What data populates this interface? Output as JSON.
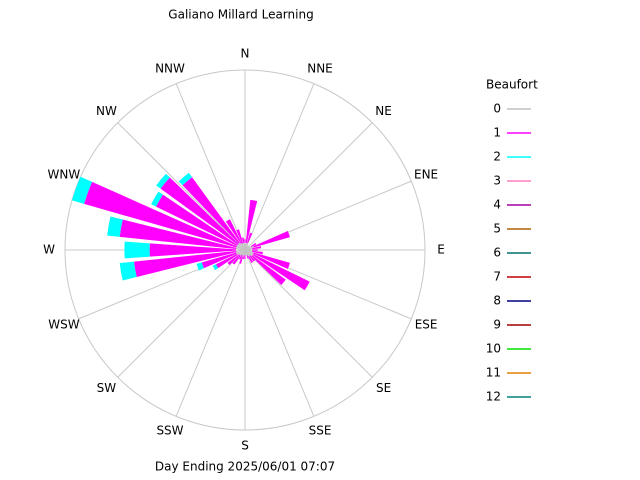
{
  "chart_data": {
    "type": "windrose",
    "title": "Galiano Millard Learning",
    "footer": "Day Ending 2025/06/01 07:07",
    "legend_title": "Beaufort",
    "direction_labels": [
      "N",
      "NNE",
      "NE",
      "ENE",
      "E",
      "ESE",
      "SE",
      "SSE",
      "S",
      "SSW",
      "SW",
      "WSW",
      "W",
      "WNW",
      "NW",
      "NNW"
    ],
    "directions": [
      0,
      10,
      20,
      30,
      40,
      50,
      60,
      70,
      80,
      90,
      100,
      110,
      120,
      130,
      140,
      150,
      160,
      170,
      180,
      190,
      200,
      210,
      220,
      230,
      240,
      250,
      260,
      270,
      280,
      290,
      300,
      310,
      320,
      330,
      340,
      350
    ],
    "rlim": [
      0,
      100
    ],
    "series": [
      {
        "name": "0",
        "color": "#c0c0c0",
        "values": [
          4,
          4,
          4,
          3,
          3,
          3,
          4,
          5,
          4,
          4,
          4,
          5,
          5,
          5,
          4,
          4,
          3,
          3,
          3,
          3,
          4,
          3,
          4,
          4,
          5,
          5,
          5,
          5,
          5,
          5,
          5,
          5,
          5,
          4,
          4,
          4
        ]
      },
      {
        "name": "1",
        "color": "#ff00ff",
        "values": [
          2,
          24,
          6,
          0,
          0,
          0,
          3,
          21,
          5,
          3,
          6,
          21,
          35,
          23,
          4,
          4,
          2,
          0,
          2,
          2,
          4,
          3,
          6,
          8,
          13,
          20,
          57,
          48,
          65,
          88,
          50,
          53,
          45,
          15,
          8,
          3
        ]
      },
      {
        "name": "2",
        "color": "#00ffff",
        "values": [
          0,
          0,
          0,
          0,
          0,
          0,
          0,
          0,
          0,
          0,
          0,
          0,
          0,
          0,
          0,
          0,
          0,
          0,
          0,
          0,
          0,
          0,
          0,
          0,
          2,
          3,
          8,
          14,
          7,
          7,
          3,
          3,
          3,
          0,
          0,
          0
        ]
      },
      {
        "name": "3",
        "color": "#ff80c0",
        "values": [
          0,
          0,
          0,
          0,
          0,
          0,
          0,
          0,
          0,
          0,
          0,
          0,
          0,
          0,
          0,
          0,
          0,
          0,
          0,
          0,
          0,
          0,
          0,
          0,
          0,
          0,
          0,
          0,
          0,
          0,
          0,
          0,
          0,
          0,
          0,
          0
        ]
      },
      {
        "name": "4",
        "color": "#a000a0",
        "values": [
          0,
          0,
          0,
          0,
          0,
          0,
          0,
          0,
          0,
          0,
          0,
          0,
          0,
          0,
          0,
          0,
          0,
          0,
          0,
          0,
          0,
          0,
          0,
          0,
          0,
          0,
          0,
          0,
          0,
          0,
          0,
          0,
          0,
          0,
          0,
          0
        ]
      },
      {
        "name": "5",
        "color": "#b06000",
        "values": [
          0,
          0,
          0,
          0,
          0,
          0,
          0,
          0,
          0,
          0,
          0,
          0,
          0,
          0,
          0,
          0,
          0,
          0,
          0,
          0,
          0,
          0,
          0,
          0,
          0,
          0,
          0,
          0,
          0,
          0,
          0,
          0,
          0,
          0,
          0,
          0
        ]
      },
      {
        "name": "6",
        "color": "#007070",
        "values": [
          0,
          0,
          0,
          0,
          0,
          0,
          0,
          0,
          0,
          0,
          0,
          0,
          0,
          0,
          0,
          0,
          0,
          0,
          0,
          0,
          0,
          0,
          0,
          0,
          0,
          0,
          0,
          0,
          0,
          0,
          0,
          0,
          0,
          0,
          0,
          0
        ]
      },
      {
        "name": "7",
        "color": "#c00000",
        "values": [
          0,
          0,
          0,
          0,
          0,
          0,
          0,
          0,
          0,
          0,
          0,
          0,
          0,
          0,
          0,
          0,
          0,
          0,
          0,
          0,
          0,
          0,
          0,
          0,
          0,
          0,
          0,
          0,
          0,
          0,
          0,
          0,
          0,
          0,
          0,
          0
        ]
      },
      {
        "name": "8",
        "color": "#000080",
        "values": [
          0,
          0,
          0,
          0,
          0,
          0,
          0,
          0,
          0,
          0,
          0,
          0,
          0,
          0,
          0,
          0,
          0,
          0,
          0,
          0,
          0,
          0,
          0,
          0,
          0,
          0,
          0,
          0,
          0,
          0,
          0,
          0,
          0,
          0,
          0,
          0
        ]
      },
      {
        "name": "9",
        "color": "#a00000",
        "values": [
          0,
          0,
          0,
          0,
          0,
          0,
          0,
          0,
          0,
          0,
          0,
          0,
          0,
          0,
          0,
          0,
          0,
          0,
          0,
          0,
          0,
          0,
          0,
          0,
          0,
          0,
          0,
          0,
          0,
          0,
          0,
          0,
          0,
          0,
          0,
          0
        ]
      },
      {
        "name": "10",
        "color": "#00e000",
        "values": [
          0,
          0,
          0,
          0,
          0,
          0,
          0,
          0,
          0,
          0,
          0,
          0,
          0,
          0,
          0,
          0,
          0,
          0,
          0,
          0,
          0,
          0,
          0,
          0,
          0,
          0,
          0,
          0,
          0,
          0,
          0,
          0,
          0,
          0,
          0,
          0
        ]
      },
      {
        "name": "11",
        "color": "#e08000",
        "values": [
          0,
          0,
          0,
          0,
          0,
          0,
          0,
          0,
          0,
          0,
          0,
          0,
          0,
          0,
          0,
          0,
          0,
          0,
          0,
          0,
          0,
          0,
          0,
          0,
          0,
          0,
          0,
          0,
          0,
          0,
          0,
          0,
          0,
          0,
          0,
          0
        ]
      },
      {
        "name": "12",
        "color": "#008080",
        "values": [
          0,
          0,
          0,
          0,
          0,
          0,
          0,
          0,
          0,
          0,
          0,
          0,
          0,
          0,
          0,
          0,
          0,
          0,
          0,
          0,
          0,
          0,
          0,
          0,
          0,
          0,
          0,
          0,
          0,
          0,
          0,
          0,
          0,
          0,
          0,
          0
        ]
      }
    ]
  }
}
